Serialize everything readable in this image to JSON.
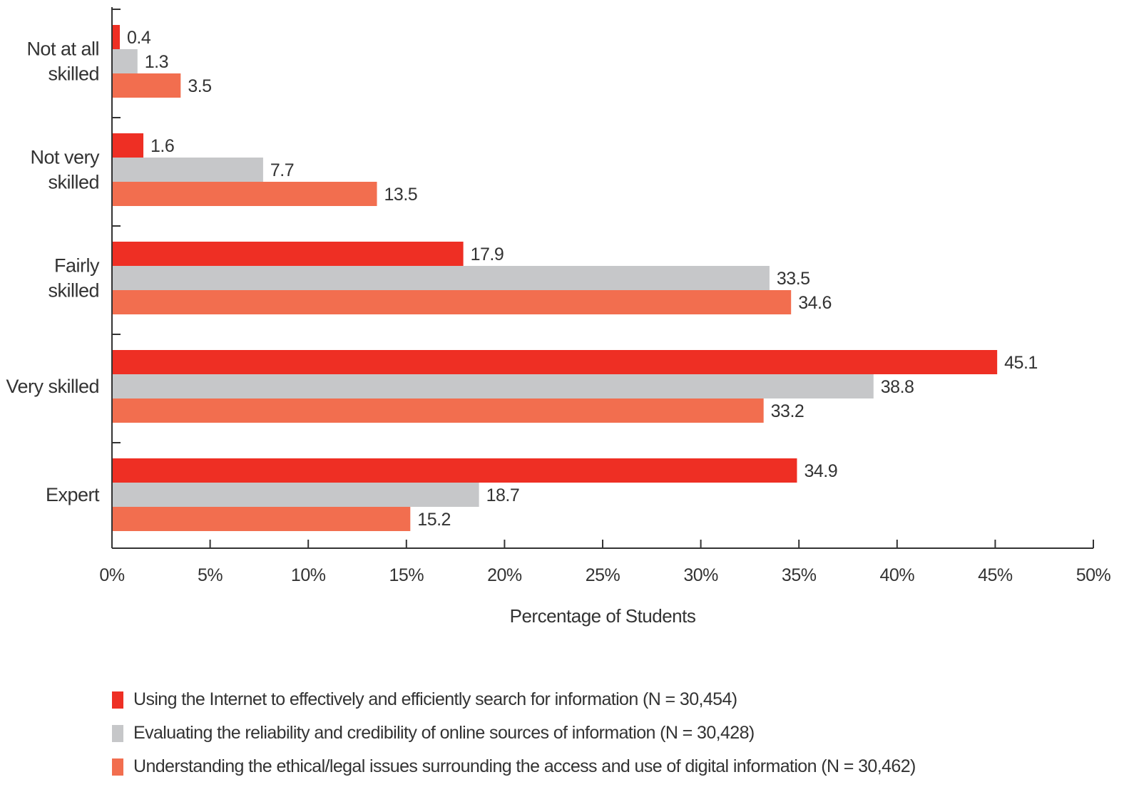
{
  "chart_data": {
    "type": "bar",
    "orientation": "horizontal",
    "title": "",
    "xlabel": "Percentage of Students",
    "ylabel": "",
    "xlim": [
      0,
      50
    ],
    "x_ticks": [
      "0%",
      "5%",
      "10%",
      "15%",
      "20%",
      "25%",
      "30%",
      "35%",
      "40%",
      "45%",
      "50%"
    ],
    "grid": false,
    "legend_position": "bottom-left",
    "categories": [
      [
        "Not at all",
        "skilled"
      ],
      [
        "Not very",
        "skilled"
      ],
      [
        "Fairly",
        "skilled"
      ],
      [
        "Very skilled"
      ],
      [
        "Expert"
      ]
    ],
    "series": [
      {
        "name": "Using the Internet to effectively and efficiently search for information (N = 30,454)",
        "color": "#ee2f24",
        "values": [
          0.4,
          1.6,
          17.9,
          45.1,
          34.9
        ],
        "labels": [
          "0.4",
          "1.6",
          "17.9",
          "45.1",
          "34.9"
        ]
      },
      {
        "name": "Evaluating the reliability and credibility of online sources of information (N = 30,428)",
        "color": "#c6c7c9",
        "values": [
          1.3,
          7.7,
          33.5,
          38.8,
          18.7
        ],
        "labels": [
          "1.3",
          "7.7",
          "33.5",
          "38.8",
          "18.7"
        ]
      },
      {
        "name": "Understanding the ethical/legal issues surrounding the access and use of digital information (N = 30,462)",
        "color": "#f26e4f",
        "values": [
          3.5,
          13.5,
          34.6,
          33.2,
          15.2
        ],
        "labels": [
          "3.5",
          "13.5",
          "34.6",
          "33.2",
          "15.2"
        ]
      }
    ]
  }
}
